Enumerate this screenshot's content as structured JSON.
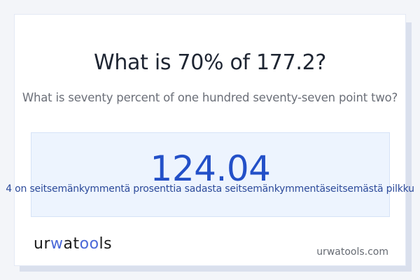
{
  "title": "What is 70% of 177.2?",
  "subtitle": "What is seventy percent of one hundred seventy-seven point two?",
  "result": {
    "value": "124.04",
    "words": "4 on seitsemänkymmentä prosenttia sadasta seitsemänkymmentäseitsemästä pilkku"
  },
  "footer": {
    "logo": {
      "p1": "ur",
      "p2": "w",
      "p3": "at",
      "p4": "oo",
      "p5": "ls"
    },
    "site": "urwatools.com"
  },
  "colors": {
    "accent": "#2350c8",
    "answer_bg": "#edf4fe",
    "background": "#f3f5f9"
  }
}
